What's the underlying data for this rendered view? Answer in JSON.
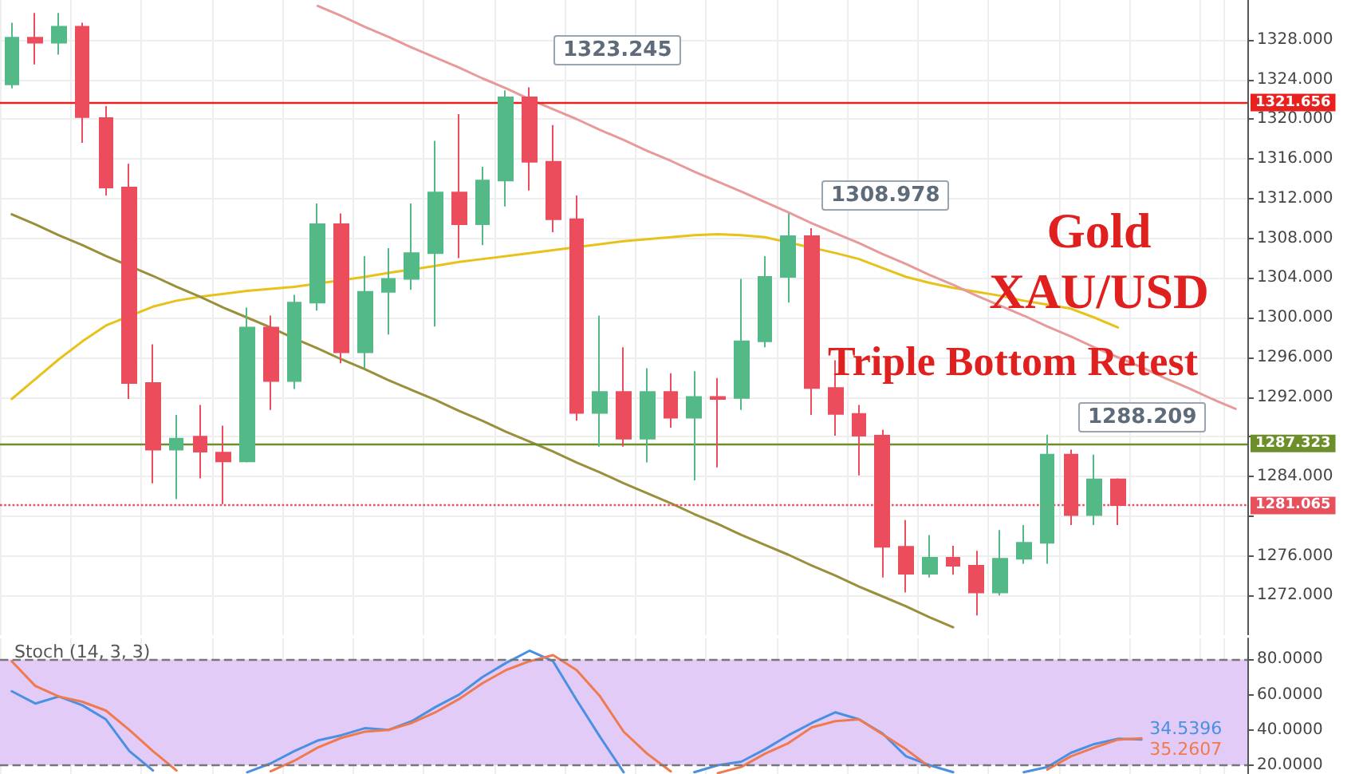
{
  "chart_data": [
    {
      "type": "candlestick",
      "categories": [
        null,
        null,
        null,
        null,
        null,
        null,
        null,
        null,
        null,
        null,
        null,
        null,
        null,
        null,
        null,
        null,
        null,
        null,
        null,
        null,
        null,
        null,
        null,
        null,
        null,
        null,
        null,
        null,
        null,
        null,
        null,
        null,
        null,
        null,
        null,
        null,
        null,
        null,
        null,
        null,
        null,
        null,
        null,
        null,
        null,
        null,
        null,
        null,
        null,
        null,
        null,
        null,
        null
      ],
      "ohlc": [
        [
          1323.5,
          1329.7,
          1323.1,
          1328.2
        ],
        [
          1328.2,
          1330.7,
          1325.5,
          1327.7
        ],
        [
          1327.7,
          1330.7,
          1326.5,
          1329.3
        ],
        [
          1329.3,
          1329.7,
          1317.6,
          1320.2
        ],
        [
          1320.1,
          1321.3,
          1312.3,
          1313.1
        ],
        [
          1313.1,
          1315.5,
          1291.8,
          1293.4
        ],
        [
          1293.4,
          1297.3,
          1283.3,
          1286.7
        ],
        [
          1286.7,
          1290.2,
          1281.7,
          1287.8
        ],
        [
          1288.0,
          1291.2,
          1283.8,
          1286.5
        ],
        [
          1286.4,
          1289.1,
          1281.2,
          1285.5
        ],
        [
          1285.5,
          1301.0,
          1285.4,
          1299.0
        ],
        [
          1299.0,
          1300.2,
          1290.7,
          1293.6
        ],
        [
          1293.6,
          1302.3,
          1292.8,
          1301.5
        ],
        [
          1301.5,
          1311.5,
          1300.7,
          1309.4
        ],
        [
          1309.4,
          1310.5,
          1295.4,
          1296.5
        ],
        [
          1296.5,
          1306.2,
          1294.9,
          1302.6
        ],
        [
          1302.6,
          1307.0,
          1298.3,
          1303.9
        ],
        [
          1303.9,
          1311.5,
          1302.8,
          1306.5
        ],
        [
          1306.5,
          1317.8,
          1299.1,
          1312.6
        ],
        [
          1312.6,
          1320.5,
          1306.0,
          1309.4
        ],
        [
          1309.4,
          1315.2,
          1307.3,
          1313.8
        ],
        [
          1313.8,
          1322.9,
          1311.2,
          1322.2
        ],
        [
          1322.2,
          1323.2,
          1312.8,
          1315.7
        ],
        [
          1315.7,
          1319.4,
          1308.6,
          1309.9
        ],
        [
          1309.9,
          1312.3,
          1289.6,
          1290.4
        ],
        [
          1290.4,
          1300.2,
          1287.0,
          1292.5
        ],
        [
          1292.5,
          1297.0,
          1287.0,
          1287.8
        ],
        [
          1287.8,
          1294.9,
          1285.4,
          1292.5
        ],
        [
          1292.5,
          1294.4,
          1288.9,
          1289.9
        ],
        [
          1289.9,
          1294.6,
          1283.6,
          1292.0
        ],
        [
          1292.0,
          1293.9,
          1284.9,
          1291.8
        ],
        [
          1291.9,
          1303.9,
          1290.7,
          1297.6
        ],
        [
          1297.6,
          1306.2,
          1297.0,
          1304.1
        ],
        [
          1304.1,
          1310.5,
          1301.5,
          1308.2
        ],
        [
          1308.2,
          1309.0,
          1290.2,
          1292.9
        ],
        [
          1292.9,
          1295.7,
          1288.1,
          1290.3
        ],
        [
          1290.3,
          1291.2,
          1284.1,
          1288.1
        ],
        [
          1288.1,
          1288.7,
          1273.8,
          1276.9
        ],
        [
          1276.9,
          1279.6,
          1272.3,
          1274.2
        ],
        [
          1274.2,
          1278.1,
          1273.8,
          1275.8
        ],
        [
          1275.8,
          1277.0,
          1274.1,
          1275.0
        ],
        [
          1275.0,
          1276.5,
          1270.0,
          1272.3
        ],
        [
          1272.3,
          1278.6,
          1272.0,
          1275.7
        ],
        [
          1275.7,
          1279.1,
          1275.2,
          1277.3
        ],
        [
          1277.3,
          1288.2,
          1275.2,
          1286.2
        ],
        [
          1286.2,
          1286.7,
          1279.1,
          1280.1
        ],
        [
          1280.1,
          1286.2,
          1279.1,
          1283.7
        ],
        [
          1283.7,
          1283.8,
          1279.1,
          1281.1
        ],
        null,
        null,
        null,
        null,
        null
      ],
      "colors": [
        "#53b987",
        "#eb4d5c",
        "#53b987",
        "#eb4d5c",
        "#eb4d5c",
        "#eb4d5c",
        "#eb4d5c",
        "#53b987",
        "#eb4d5c",
        "#eb4d5c",
        "#53b987",
        "#eb4d5c",
        "#53b987",
        "#53b987",
        "#eb4d5c",
        "#53b987",
        "#53b987",
        "#53b987",
        "#53b987",
        "#eb4d5c",
        "#53b987",
        "#53b987",
        "#eb4d5c",
        "#eb4d5c",
        "#eb4d5c",
        "#53b987",
        "#eb4d5c",
        "#53b987",
        "#eb4d5c",
        "#53b987",
        "#eb4d5c",
        "#53b987",
        "#53b987",
        "#53b987",
        "#eb4d5c",
        "#eb4d5c",
        "#eb4d5c",
        "#eb4d5c",
        "#eb4d5c",
        "#53b987",
        "#eb4d5c",
        "#eb4d5c",
        "#53b987",
        "#53b987",
        "#53b987",
        "#eb4d5c",
        "#53b987",
        "#eb4d5c",
        null,
        null,
        null,
        null,
        null
      ],
      "series": [
        {
          "type": "line",
          "color": "#e8c21a",
          "values": [
            1291.8,
            1293.8,
            1295.8,
            1297.6,
            1299.2,
            null,
            1301.1,
            1301.7,
            1302.1,
            1302.4,
            1302.7,
            1302.9,
            1303.1,
            null,
            null,
            1304.1,
            1304.5,
            null,
            1305.2,
            1305.6,
            1305.9,
            1306.2,
            1306.5,
            1306.8,
            null,
            1307.4,
            1307.7,
            1307.9,
            1308.1,
            1308.3,
            1308.4,
            1308.3,
            1308.1,
            null,
            null,
            1306.5,
            1305.9,
            1305.0,
            1304.1,
            1303.5,
            1303.0,
            1302.6,
            1302.2,
            1301.7,
            1301.3,
            1300.9,
            1300.0,
            1299.0,
            null,
            null,
            null,
            null,
            null
          ]
        },
        {
          "type": "line",
          "color": "#e89a9a",
          "values": [
            null,
            null,
            null,
            null,
            null,
            null,
            null,
            null,
            null,
            null,
            null,
            null,
            null,
            1331.4,
            1330.4,
            1329.3,
            1328.3,
            1327.2,
            1326.2,
            1325.2,
            1324.1,
            1323.1,
            1322.0,
            1321.0,
            1320.0,
            1318.9,
            1317.9,
            1316.8,
            1315.8,
            1314.7,
            1313.7,
            1312.7,
            null,
            1310.6,
            1309.5,
            1308.5,
            1307.5,
            1306.4,
            1305.4,
            1304.3,
            1303.3,
            1302.2,
            1301.2,
            1300.2,
            1299.1,
            1298.1,
            1297.0,
            1296.0,
            1295.0,
            1293.9,
            1292.9,
            1291.8,
            1290.8
          ]
        },
        {
          "type": "line",
          "color": "#9a8f3c",
          "values": [
            1310.4,
            1309.4,
            1308.3,
            1307.3,
            1306.2,
            null,
            1304.2,
            1303.1,
            1302.1,
            1301.0,
            1300.0,
            1299.0,
            1297.9,
            1296.9,
            1295.8,
            1294.8,
            1293.7,
            1292.7,
            1291.7,
            1290.6,
            1289.6,
            1288.5,
            1287.5,
            1286.5,
            1285.4,
            1284.4,
            1283.3,
            1282.3,
            1281.3,
            1280.2,
            1279.2,
            1278.1,
            1277.1,
            1276.1,
            1275.0,
            1274.0,
            1272.9,
            1271.9,
            1270.9,
            1269.8,
            1268.8,
            null,
            null,
            null,
            null,
            null,
            null,
            null,
            null,
            null,
            null,
            null,
            null
          ]
        }
      ],
      "ylim": [
        1268,
        1332
      ],
      "yticks": [
        {
          "value": 1272,
          "label": "1272.000"
        },
        {
          "value": 1276,
          "label": "1276.000"
        },
        {
          "value": 1280,
          "label": null
        },
        {
          "value": 1284,
          "label": "1284.000"
        },
        {
          "value": 1288,
          "label": null
        },
        {
          "value": 1292,
          "label": "1292.000"
        },
        {
          "value": 1296,
          "label": "1296.000"
        },
        {
          "value": 1300,
          "label": "1300.000"
        },
        {
          "value": 1304,
          "label": "1304.000"
        },
        {
          "value": 1308,
          "label": "1308.000"
        },
        {
          "value": 1312,
          "label": "1312.000"
        },
        {
          "value": 1316,
          "label": "1316.000"
        },
        {
          "value": 1320,
          "label": "1320.000"
        },
        {
          "value": 1324,
          "label": "1324.000"
        },
        {
          "value": 1328,
          "label": "1328.000"
        }
      ],
      "ref_lines": [
        {
          "axis": "y",
          "value": 1321.656,
          "label": "1321.656",
          "color": "#e8201e",
          "line_style": "solid"
        },
        {
          "axis": "y",
          "value": 1287.323,
          "label": "1287.323",
          "color": "#6d8f2a",
          "line_style": "solid"
        },
        {
          "axis": "y",
          "value": 1281.065,
          "label": "1281.065",
          "color": "#e8505c",
          "line_style": "dotted"
        }
      ],
      "annotations": [
        "1323.245",
        "1308.978",
        "1288.209",
        "Gold XAU/USD",
        "Triple Bottom Retest"
      ],
      "grid": true,
      "marker": "none",
      "line_style": "solid",
      "tick_labels": "y"
    },
    {
      "type": "line",
      "title": "Stoch (14, 3, 3)",
      "categories": [
        null,
        null,
        null,
        null,
        null,
        null,
        null,
        null,
        null,
        null,
        null,
        null,
        null,
        null,
        null,
        null,
        null,
        null,
        null,
        null,
        null,
        null,
        null,
        null,
        null,
        null,
        null,
        null,
        null,
        null,
        null,
        null,
        null,
        null,
        null,
        null,
        null,
        null,
        null,
        null,
        null,
        null,
        null,
        null,
        null,
        null,
        null,
        null,
        null,
        null,
        null,
        null,
        null
      ],
      "series": [
        {
          "color": "#4a90e2",
          "values": [
            62,
            55,
            59,
            54,
            46,
            28,
            17,
            null,
            null,
            null,
            16,
            21,
            28,
            34,
            37,
            41,
            40,
            45,
            53,
            60,
            70,
            78,
            85,
            79,
            57,
            36,
            16,
            null,
            null,
            16,
            20,
            22,
            29,
            37,
            44,
            50,
            46,
            38,
            25,
            20,
            16,
            null,
            null,
            16,
            19,
            27,
            32,
            35,
            34.5396,
            null,
            null,
            null,
            null
          ],
          "value_labels": [
            null,
            null,
            null,
            null,
            null,
            null,
            null,
            null,
            null,
            null,
            null,
            null,
            null,
            null,
            null,
            null,
            null,
            null,
            null,
            null,
            null,
            null,
            null,
            null,
            null,
            null,
            null,
            null,
            null,
            null,
            null,
            null,
            null,
            null,
            null,
            null,
            null,
            null,
            null,
            null,
            null,
            null,
            null,
            null,
            null,
            null,
            null,
            null,
            "34.5396",
            null,
            null,
            null,
            null
          ]
        },
        {
          "color": "#f07a50",
          "values": [
            79,
            65,
            59,
            56,
            51,
            40,
            28,
            17,
            null,
            null,
            null,
            16.5,
            22.5,
            30,
            35.5,
            39,
            40,
            44,
            50,
            57.5,
            66.5,
            74,
            79,
            82.5,
            74,
            59,
            39,
            26.5,
            16.5,
            null,
            15.5,
            19,
            26.5,
            32.5,
            41.5,
            45,
            46,
            37.5,
            29,
            19,
            null,
            null,
            null,
            null,
            17.5,
            25,
            30,
            34.5,
            35.2607,
            null,
            null,
            null,
            null
          ],
          "value_labels": [
            null,
            null,
            null,
            null,
            null,
            null,
            null,
            null,
            null,
            null,
            null,
            null,
            null,
            null,
            null,
            null,
            null,
            null,
            null,
            null,
            null,
            null,
            null,
            null,
            null,
            null,
            null,
            null,
            null,
            null,
            null,
            null,
            null,
            null,
            null,
            null,
            null,
            null,
            null,
            null,
            null,
            null,
            null,
            null,
            null,
            null,
            null,
            null,
            "35.2607",
            null,
            null,
            null,
            null
          ]
        }
      ],
      "ylim": [
        15,
        92
      ],
      "yticks": [
        {
          "value": 20,
          "label": "20.0000"
        },
        {
          "value": 40,
          "label": "40.0000"
        },
        {
          "value": 60,
          "label": "60.0000"
        },
        {
          "value": 80,
          "label": "80.0000"
        }
      ],
      "ref_lines": [
        {
          "axis": "y",
          "value": 80,
          "label": null,
          "color": "#777777",
          "line_style": "dashed"
        },
        {
          "axis": "y",
          "value": 20,
          "label": null,
          "color": "#777777",
          "line_style": "dashed"
        }
      ],
      "bands": [
        {
          "axis": "y",
          "from": 20,
          "to": 80,
          "label": null,
          "color": "#e3cbf7"
        }
      ],
      "grid": "x",
      "marker": "none",
      "line_style": "solid",
      "tick_labels": "y"
    }
  ]
}
